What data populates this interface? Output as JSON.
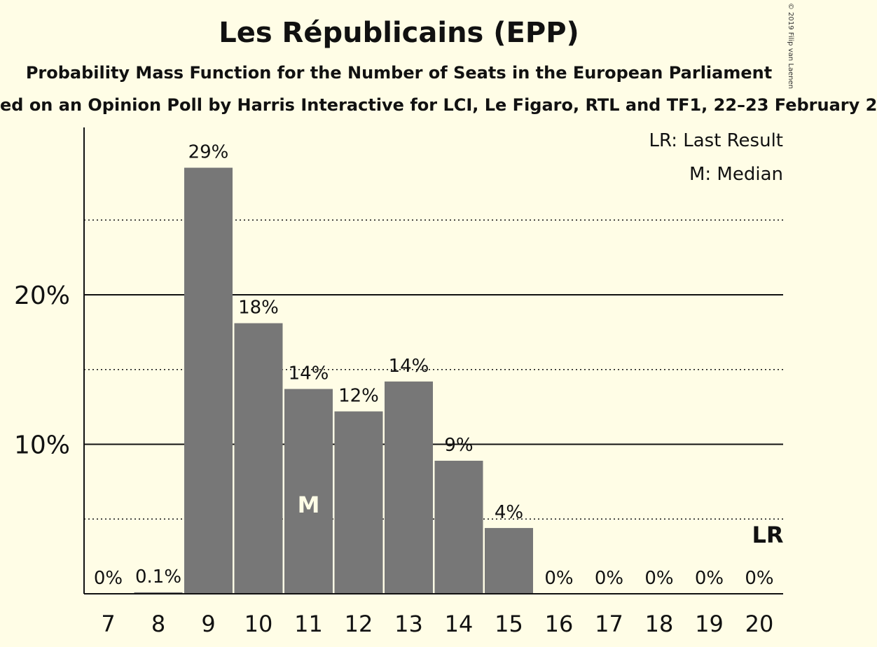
{
  "title": "Les Républicains (EPP)",
  "subtitle": "Probability Mass Function for the Number of Seats in the European Parliament",
  "subtitle2": "ed on an Opinion Poll by Harris Interactive for LCI, Le Figaro, RTL and TF1, 22–23 February 2",
  "copyright": "© 2019 Filip van Laenen",
  "legend": {
    "last_result": "LR: Last Result",
    "median": "M: Median"
  },
  "colors": {
    "background": "#fffde6",
    "bar": "#777777",
    "text": "#111111"
  },
  "chart_data": {
    "type": "bar",
    "categories": [
      "7",
      "8",
      "9",
      "10",
      "11",
      "12",
      "13",
      "14",
      "15",
      "16",
      "17",
      "18",
      "19",
      "20"
    ],
    "values": [
      0,
      0.1,
      28.5,
      18.1,
      13.7,
      12.2,
      14.2,
      8.9,
      4.4,
      0,
      0,
      0,
      0,
      0
    ],
    "data_labels": [
      "0%",
      "0.1%",
      "29%",
      "18%",
      "14%",
      "12%",
      "14%",
      "9%",
      "4%",
      "0%",
      "0%",
      "0%",
      "0%",
      "0%"
    ],
    "ylim": [
      0,
      31
    ],
    "major_ticks": [
      10,
      20
    ],
    "major_tick_labels": [
      "10%",
      "20%"
    ],
    "minor_ticks": [
      5,
      15,
      25
    ],
    "median_category": "11",
    "median_marker": "M",
    "last_result_category": "20",
    "last_result_marker": "LR",
    "legend_position": "top-right",
    "grid": true
  }
}
